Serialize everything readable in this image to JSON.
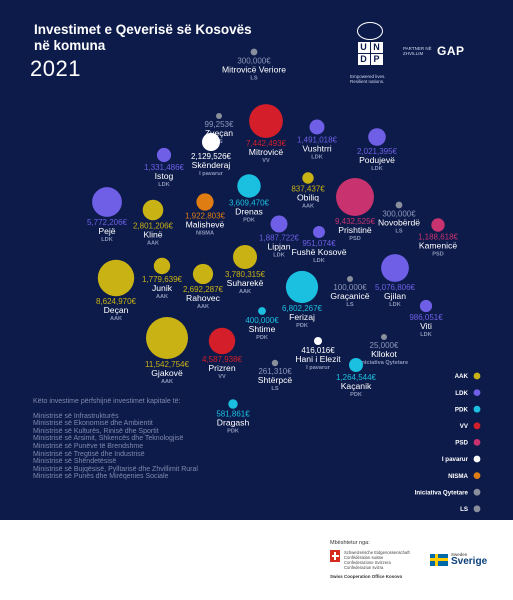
{
  "title": "Investimet e Qeverisë së Kosovës në komuna",
  "year": "2021",
  "logos": {
    "undp_letters": [
      "U",
      "N",
      "D",
      "P"
    ],
    "undp_tagline": "Empowered lives. Resilient nations.",
    "partner_small": "PARTNER NË ZHVILLIM",
    "gap": "GAP"
  },
  "colors": {
    "AAK": "#c9b214",
    "LDK": "#6e5fe6",
    "PDK": "#1bc0e0",
    "VV": "#d41f2a",
    "PSD": "#c8326e",
    "I pavarur": "#ffffff",
    "NISMA": "#e07d12",
    "Iniciativa Qytetare": "#8a8f9c",
    "LS": "#8a8f9c"
  },
  "chart_data": {
    "type": "bubble",
    "title": "Investimet e Qeverisë së Kosovës në komuna",
    "subtitle": "2021",
    "unit": "€",
    "legend_position": "right",
    "legend": [
      "AAK",
      "LDK",
      "PDK",
      "VV",
      "PSD",
      "I pavarur",
      "NISMA",
      "Iniciativa Qytetare",
      "LS"
    ],
    "points": [
      {
        "name": "Mitrovicë Veriore",
        "party": "LS",
        "value": 300000,
        "label": "300,000€"
      },
      {
        "name": "Zveçan",
        "party": "LS",
        "value": 99253,
        "label": "99,253€"
      },
      {
        "name": "Mitrovicë",
        "party": "VV",
        "value": 7442493,
        "label": "7,442,493€"
      },
      {
        "name": "Vushtrri",
        "party": "LDK",
        "value": 1491018,
        "label": "1,491,018€"
      },
      {
        "name": "Podujevë",
        "party": "LDK",
        "value": 2021395,
        "label": "2,021,395€"
      },
      {
        "name": "Skënderaj",
        "party": "I pavarur",
        "value": 2129526,
        "label": "2,129,526€"
      },
      {
        "name": "Istog",
        "party": "LDK",
        "value": 1331486,
        "label": "1,331,486€"
      },
      {
        "name": "Obiliq",
        "party": "AAK",
        "value": 837437,
        "label": "837,437€"
      },
      {
        "name": "Prishtinë",
        "party": "PSD",
        "value": 9432525,
        "label": "9,432,525€"
      },
      {
        "name": "Drenas",
        "party": "PDK",
        "value": 3609470,
        "label": "3,609,470€"
      },
      {
        "name": "Novobërdë",
        "party": "LS",
        "value": 300000,
        "label": "300,000€"
      },
      {
        "name": "Pejë",
        "party": "LDK",
        "value": 5772206,
        "label": "5,772,206€"
      },
      {
        "name": "Klinë",
        "party": "AAK",
        "value": 2801206,
        "label": "2,801,206€"
      },
      {
        "name": "Malishevë",
        "party": "NISMA",
        "value": 1922803,
        "label": "1,922,803€"
      },
      {
        "name": "Lipjan",
        "party": "LDK",
        "value": 1887722,
        "label": "1,887,722€"
      },
      {
        "name": "Fushë Kosovë",
        "party": "LDK",
        "value": 951074,
        "label": "951,074€"
      },
      {
        "name": "Kamenicë",
        "party": "PSD",
        "value": 1188618,
        "label": "1,188,618€"
      },
      {
        "name": "Junik",
        "party": "AAK",
        "value": 1779639,
        "label": "1,779,639€"
      },
      {
        "name": "Suharekë",
        "party": "AAK",
        "value": 3780315,
        "label": "3,780,315€"
      },
      {
        "name": "Gjilan",
        "party": "LDK",
        "value": 5076806,
        "label": "5,076,806€"
      },
      {
        "name": "Deçan",
        "party": "AAK",
        "value": 8624970,
        "label": "8,624,970€"
      },
      {
        "name": "Rahovec",
        "party": "AAK",
        "value": 2692287,
        "label": "2,692,287€"
      },
      {
        "name": "Ferizaj",
        "party": "PDK",
        "value": 6802267,
        "label": "6,802,267€"
      },
      {
        "name": "Graçanicë",
        "party": "LS",
        "value": 100000,
        "label": "100,000€"
      },
      {
        "name": "Viti",
        "party": "LDK",
        "value": 986051,
        "label": "986,051€"
      },
      {
        "name": "Shtime",
        "party": "PDK",
        "value": 400000,
        "label": "400,000€"
      },
      {
        "name": "Kllokot",
        "party": "Iniciativa Qytetare",
        "value": 25000,
        "label": "25,000€"
      },
      {
        "name": "Gjakovë",
        "party": "AAK",
        "value": 11542754,
        "label": "11,542,754€"
      },
      {
        "name": "Prizren",
        "party": "VV",
        "value": 4587938,
        "label": "4,587,938€"
      },
      {
        "name": "Hani i Elezit",
        "party": "I pavarur",
        "value": 416016,
        "label": "416,016€"
      },
      {
        "name": "Shtërpcë",
        "party": "LS",
        "value": 261310,
        "label": "261,310€"
      },
      {
        "name": "Kaçanik",
        "party": "PDK",
        "value": 1264544,
        "label": "1,264,544€"
      },
      {
        "name": "Dragash",
        "party": "PDK",
        "value": 581861,
        "label": "581,861€"
      }
    ]
  },
  "ministries": {
    "intro": "Këto investime përfshijnë investimet kapitale të:",
    "items": [
      "Ministrisë së Infrastrukturës",
      "Ministrisë së Ekonomisë dhe Ambientit",
      "Ministrisë së Kulturës, Rinisë dhe Sportit",
      "Ministrisë së Arsimit, Shkencës dhe Teknologjisë",
      "Ministrisë së Punëve të Brendshme",
      "Ministrisë së Tregtisë dhe Industrisë",
      "Ministrisë së Shëndetësisë",
      "Ministrisë së Bujqësisë, Pylltarisë dhe Zhvillimit Rural",
      "Ministrisë së Punës dhe Mirëqenies Sociale"
    ]
  },
  "footer": {
    "supported_by": "Mbështetur nga:",
    "swiss_lines": [
      "Schweizerische Eidgenossenschaft",
      "Confédération suisse",
      "Confederazione Svizzera",
      "Confederaziun svizra"
    ],
    "swiss_office": "Swiss Cooperation Office Kosovo",
    "sweden_small": "Sweden",
    "sweden_big": "Sverige"
  }
}
